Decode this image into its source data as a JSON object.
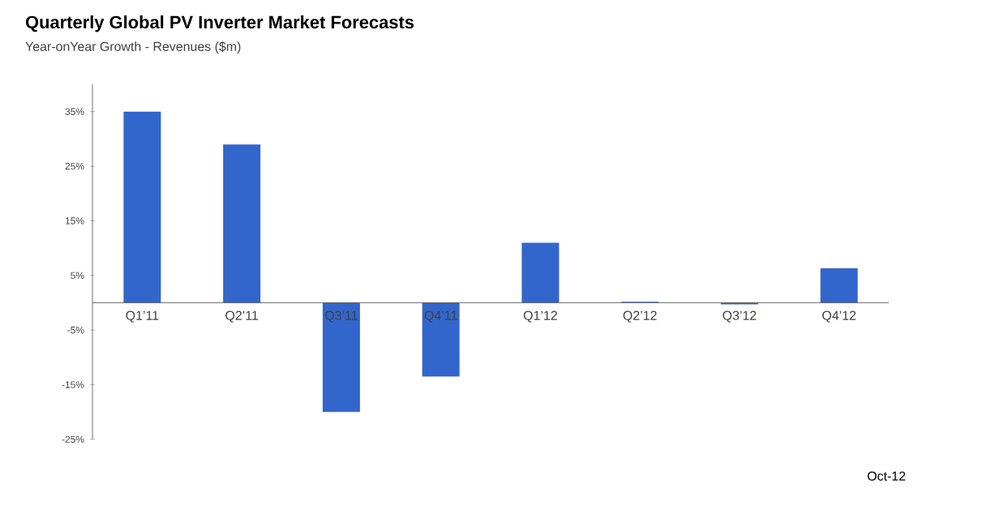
{
  "chart_data": {
    "type": "bar",
    "title": "Quarterly Global PV Inverter Market Forecasts",
    "subtitle": "Year-onYear Growth - Revenues ($m)",
    "categories": [
      "Q1’11",
      "Q2’11",
      "Q3’11",
      "Q4’11",
      "Q1’12",
      "Q2’12",
      "Q3’12",
      "Q4’12"
    ],
    "values": [
      35,
      29,
      -20,
      -13.5,
      11,
      0.2,
      -0.3,
      6.3
    ],
    "color": "#3366cc",
    "ylim": [
      -25,
      40
    ],
    "yticks": [
      {
        "value": 35,
        "label": "35%"
      },
      {
        "value": 25,
        "label": "25%"
      },
      {
        "value": 15,
        "label": "15%"
      },
      {
        "value": 5,
        "label": "5%"
      },
      {
        "value": -5,
        "label": "-5%"
      },
      {
        "value": -15,
        "label": "-15%"
      },
      {
        "value": -25,
        "label": "-25%"
      }
    ],
    "grid": false,
    "annotations": [
      "Oct-12"
    ]
  }
}
